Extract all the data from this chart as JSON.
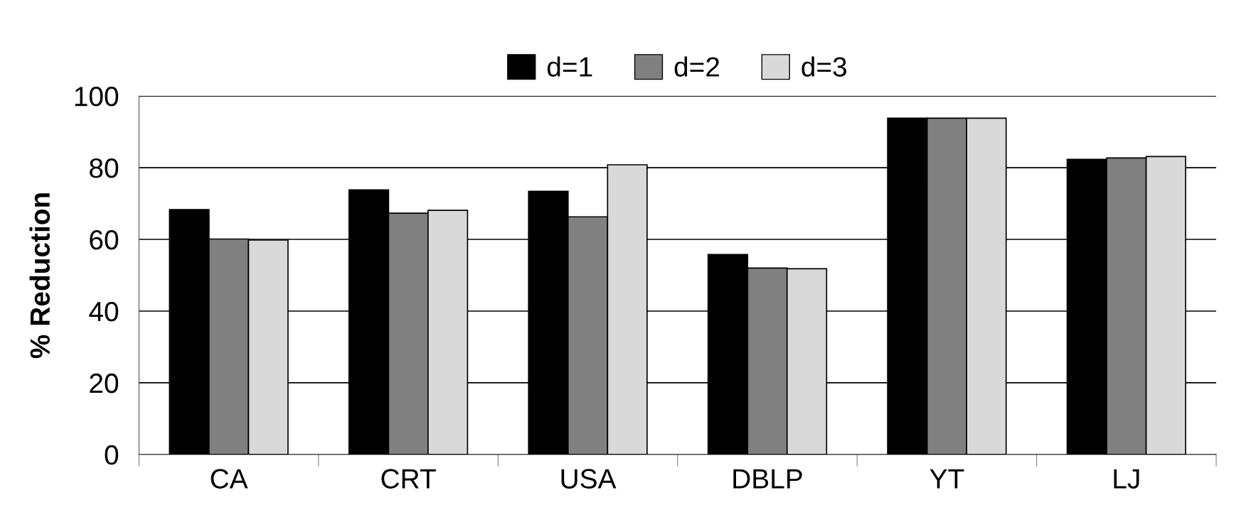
{
  "chart_data": {
    "type": "bar",
    "ylabel": "% Reduction",
    "categories": [
      "CA",
      "CRT",
      "USA",
      "DBLP",
      "YT",
      "LJ"
    ],
    "series": [
      {
        "name": "d=1",
        "color": "#000000",
        "values": [
          68.3,
          73.8,
          73.4,
          55.8,
          93.8,
          82.3
        ]
      },
      {
        "name": "d=2",
        "color": "#808080",
        "values": [
          60.1,
          67.3,
          66.3,
          52.0,
          93.8,
          82.7
        ]
      },
      {
        "name": "d=3",
        "color": "#d9d9d9",
        "values": [
          59.8,
          68.1,
          80.8,
          51.8,
          93.8,
          83.1
        ]
      }
    ],
    "ylim": [
      0,
      100
    ],
    "yticks": [
      0,
      20,
      40,
      60,
      80,
      100
    ],
    "grid": "y",
    "legend": "top"
  }
}
